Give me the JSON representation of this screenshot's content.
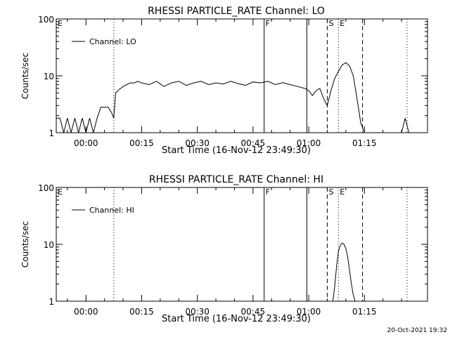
{
  "footer": {
    "timestamp": "20-Oct-2021 19:32"
  },
  "chart_data": [
    {
      "type": "line",
      "title": "RHESSI PARTICLE_RATE Channel: LO",
      "xlabel": "Start Time (16-Nov-12 23:49:30)",
      "ylabel": "Counts/sec",
      "yscale": "log",
      "ylim": [
        1,
        100
      ],
      "xlim": [
        "23:52:00",
        "01:32:00"
      ],
      "x_ticks": [
        "00:00",
        "00:15",
        "00:30",
        "00:45",
        "01:00",
        "01:15"
      ],
      "y_ticks": [
        "1",
        "10",
        "100"
      ],
      "legend": "top-left",
      "series": [
        {
          "name": "Channel: LO",
          "x": [
            "23:52:00",
            "23:53:00",
            "23:54:00",
            "23:55:00",
            "23:56:00",
            "23:57:00",
            "23:58:00",
            "23:59:00",
            "00:00:00",
            "00:01:00",
            "00:02:00",
            "00:03:00",
            "00:04:00",
            "00:05:00",
            "00:06:00",
            "00:07:00",
            "00:07:30",
            "00:08:00",
            "00:09:00",
            "00:10:00",
            "00:11:00",
            "00:12:00",
            "00:13:00",
            "00:14:00",
            "00:15:00",
            "00:17:00",
            "00:19:00",
            "00:21:00",
            "00:23:00",
            "00:25:00",
            "00:27:00",
            "00:29:00",
            "00:31:00",
            "00:33:00",
            "00:35:00",
            "00:37:00",
            "00:39:00",
            "00:41:00",
            "00:43:00",
            "00:45:00",
            "00:47:00",
            "00:49:00",
            "00:51:00",
            "00:53:00",
            "00:55:00",
            "00:57:00",
            "00:59:00",
            "01:00:00",
            "01:01:00",
            "01:02:00",
            "01:03:00",
            "01:04:00",
            "01:05:00",
            "01:06:00",
            "01:07:00",
            "01:08:00",
            "01:09:00",
            "01:10:00",
            "01:11:00",
            "01:12:00",
            "01:13:00",
            "01:14:00",
            "01:15:00",
            "01:16:00",
            "01:20:00",
            "01:24:00",
            "01:25:00",
            "01:26:00",
            "01:27:00"
          ],
          "values": [
            1.8,
            1.8,
            1,
            1.8,
            1,
            1.8,
            1,
            1.8,
            1,
            1.8,
            1,
            1.8,
            2.8,
            2.8,
            2.8,
            2.2,
            1.8,
            5,
            5.8,
            6.5,
            7,
            7.5,
            7.5,
            8,
            7.5,
            7,
            8,
            6.5,
            7.5,
            8,
            6.8,
            7.5,
            8,
            7,
            7.5,
            7.2,
            8,
            7.3,
            6.8,
            7.8,
            7.5,
            8,
            7,
            7.6,
            7,
            6.5,
            6,
            5.5,
            4.5,
            5.5,
            6,
            4,
            3,
            5.5,
            9,
            12,
            15.5,
            17,
            15,
            10,
            4,
            1.5,
            1,
            1,
            1,
            1,
            1,
            1.8,
            1
          ]
        }
      ],
      "markers": [
        {
          "label": "E",
          "time": "23:52:00",
          "style": "dotted"
        },
        {
          "label": "",
          "time": "00:07:30",
          "style": "dotted"
        },
        {
          "label": "F",
          "time": "00:48:00",
          "style": "solid"
        },
        {
          "label": "",
          "time": "00:59:30",
          "style": "solid"
        },
        {
          "label": "S",
          "time": "01:05:00",
          "style": "dashed"
        },
        {
          "label": "",
          "time": "01:08:00",
          "style": "dotted"
        },
        {
          "label": "E",
          "time": "01:08:00",
          "style": "none"
        },
        {
          "label": "",
          "time": "01:14:30",
          "style": "dashed"
        },
        {
          "label": "",
          "time": "01:26:30",
          "style": "dotted"
        }
      ]
    },
    {
      "type": "line",
      "title": "RHESSI PARTICLE_RATE Channel: HI",
      "xlabel": "Start Time (16-Nov-12 23:49:30)",
      "ylabel": "Counts/sec",
      "yscale": "log",
      "ylim": [
        1,
        100
      ],
      "xlim": [
        "23:52:00",
        "01:32:00"
      ],
      "x_ticks": [
        "00:00",
        "00:15",
        "00:30",
        "00:45",
        "01:00",
        "01:15"
      ],
      "y_ticks": [
        "1",
        "10",
        "100"
      ],
      "legend": "top-left",
      "series": [
        {
          "name": "Channel: HI",
          "x": [
            "01:06:30",
            "01:07:00",
            "01:07:30",
            "01:08:00",
            "01:08:30",
            "01:09:00",
            "01:09:30",
            "01:10:00",
            "01:10:30",
            "01:11:00",
            "01:11:30",
            "01:12:00",
            "01:12:30"
          ],
          "values": [
            1,
            1.8,
            4,
            7.5,
            9.5,
            10.5,
            10,
            8.5,
            6,
            3.5,
            2,
            1.3,
            1
          ]
        }
      ],
      "markers": [
        {
          "label": "E",
          "time": "23:52:00",
          "style": "dotted"
        },
        {
          "label": "",
          "time": "00:07:30",
          "style": "dotted"
        },
        {
          "label": "F",
          "time": "00:48:00",
          "style": "solid"
        },
        {
          "label": "",
          "time": "00:59:30",
          "style": "solid"
        },
        {
          "label": "S",
          "time": "01:05:00",
          "style": "dashed"
        },
        {
          "label": "",
          "time": "01:08:00",
          "style": "dotted"
        },
        {
          "label": "E",
          "time": "01:08:00",
          "style": "none"
        },
        {
          "label": "",
          "time": "01:14:30",
          "style": "dashed"
        },
        {
          "label": "",
          "time": "01:26:30",
          "style": "dotted"
        }
      ]
    }
  ]
}
